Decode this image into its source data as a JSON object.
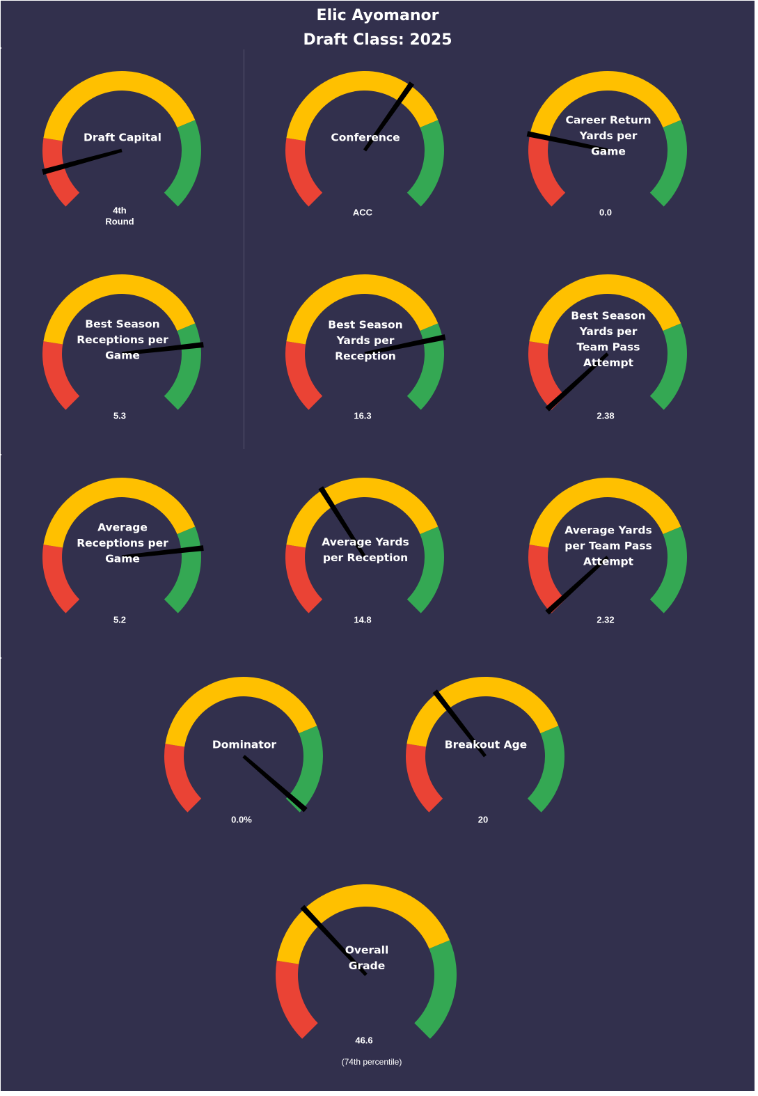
{
  "page": {
    "title_line1": "Elic Ayomanor",
    "title_line2": "Draft Class: 2025",
    "background": "#32304d"
  },
  "colors": {
    "low": "#ea4335",
    "mid": "#ffc000",
    "high": "#34a853",
    "needle": "#000000",
    "text": "#ffffff"
  },
  "chart_data": [
    {
      "type": "gauge",
      "title": [
        "Draft Capital"
      ],
      "value_label": [
        "4th",
        "Round"
      ],
      "needle_fraction": 0.11,
      "bands": [
        0.2,
        0.75
      ]
    },
    {
      "type": "gauge",
      "title": [
        "Conference"
      ],
      "value_label": [
        "ACC"
      ],
      "needle_fraction": 0.63,
      "bands": [
        0.2,
        0.63,
        0.75
      ]
    },
    {
      "type": "gauge",
      "title": [
        "Career Return",
        "Yards per",
        "Game"
      ],
      "value_label": [
        "0.0"
      ],
      "needle_fraction": 0.21,
      "bands": [
        0.21,
        0.75
      ]
    },
    {
      "type": "gauge",
      "title": [
        "Best Season",
        "Receptions per",
        "Game"
      ],
      "value_label": [
        "5.3"
      ],
      "needle_fraction": 0.81,
      "bands": [
        0.2,
        0.75,
        0.81
      ]
    },
    {
      "type": "gauge",
      "title": [
        "Best Season",
        "Yards per",
        "Reception"
      ],
      "value_label": [
        "16.3"
      ],
      "needle_fraction": 0.79,
      "bands": [
        0.2,
        0.75,
        0.79
      ]
    },
    {
      "type": "gauge",
      "title": [
        "Best Season",
        "Yards per",
        "Team Pass",
        "Attempt"
      ],
      "value_label": [
        "2.38"
      ],
      "needle_fraction": 0.009,
      "bands": [
        0.009,
        0.2,
        0.75
      ]
    },
    {
      "type": "gauge",
      "title": [
        "Average",
        "Receptions per",
        "Game"
      ],
      "value_label": [
        "5.2"
      ],
      "needle_fraction": 0.81,
      "bands": [
        0.2,
        0.75,
        0.81
      ]
    },
    {
      "type": "gauge",
      "title": [
        "Average Yards",
        "per Reception"
      ],
      "value_label": [
        "14.8"
      ],
      "needle_fraction": 0.38,
      "bands": [
        0.2,
        0.38,
        0.75
      ]
    },
    {
      "type": "gauge",
      "title": [
        "Average Yards",
        "per Team Pass",
        "Attempt"
      ],
      "value_label": [
        "2.32"
      ],
      "needle_fraction": 0.009,
      "bands": [
        0.009,
        0.2,
        0.75
      ]
    },
    {
      "type": "gauge",
      "title": [
        "Dominator"
      ],
      "value_label": [
        "0.0%"
      ],
      "needle_fraction": 0.985,
      "bands": [
        0.2,
        0.75,
        0.985
      ]
    },
    {
      "type": "gauge",
      "title": [
        "Breakout Age"
      ],
      "value_label": [
        "20"
      ],
      "needle_fraction": 0.36,
      "bands": [
        0.2,
        0.36,
        0.75
      ]
    },
    {
      "type": "gauge",
      "title": [
        "Overall",
        "Grade"
      ],
      "value_label": [
        "46.6"
      ],
      "note": "(74th  percentile)",
      "needle_fraction": 0.34,
      "bands": [
        0.2,
        0.34,
        0.75
      ]
    }
  ]
}
